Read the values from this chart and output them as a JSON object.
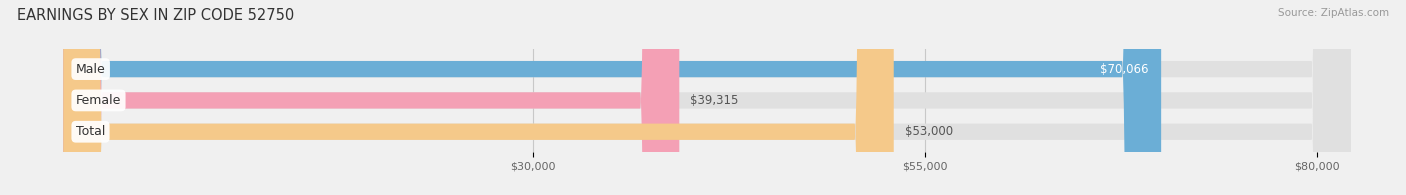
{
  "title": "EARNINGS BY SEX IN ZIP CODE 52750",
  "source": "Source: ZipAtlas.com",
  "categories": [
    "Male",
    "Female",
    "Total"
  ],
  "values": [
    70066,
    39315,
    53000
  ],
  "bar_colors": [
    "#6baed6",
    "#f4a0b5",
    "#f5c98a"
  ],
  "value_labels": [
    "$70,066",
    "$39,315",
    "$53,000"
  ],
  "value_label_inside": [
    true,
    false,
    false
  ],
  "xlim": [
    0,
    83000
  ],
  "xticks": [
    30000,
    55000,
    80000
  ],
  "xtick_labels": [
    "$30,000",
    "$55,000",
    "$80,000"
  ],
  "bar_height": 0.52,
  "background_color": "#f0f0f0",
  "bar_bg_color": "#e0e0e0",
  "title_fontsize": 10.5,
  "label_fontsize": 9,
  "value_fontsize": 8.5,
  "tick_fontsize": 8,
  "source_fontsize": 7.5
}
